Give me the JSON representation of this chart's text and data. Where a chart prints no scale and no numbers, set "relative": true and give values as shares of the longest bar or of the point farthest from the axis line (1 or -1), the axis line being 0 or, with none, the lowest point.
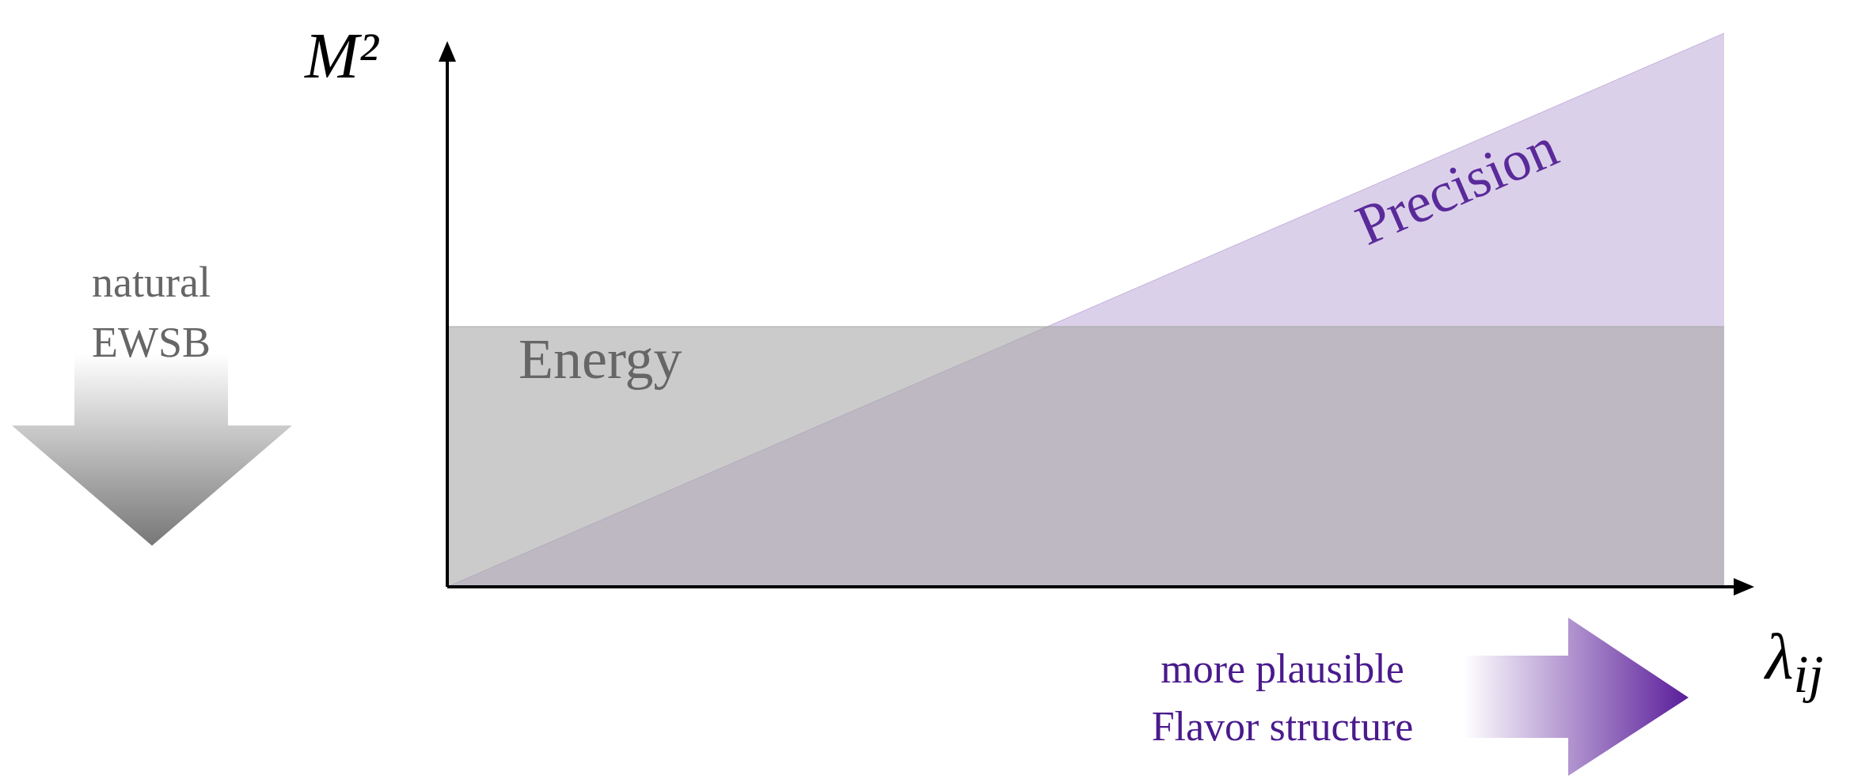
{
  "chart_data": {
    "type": "area",
    "relative": true,
    "xlabel": "λ$_{ij}$",
    "ylabel": "M²",
    "categories": [
      null,
      null
    ],
    "series": [
      {
        "name": "Energy",
        "color": "#a9a9a9",
        "values": [
          0.47,
          0.47
        ]
      },
      {
        "name": "Precision",
        "color": "#c3b0da",
        "values": [
          0,
          1
        ]
      }
    ],
    "annotations": [
      "natural EWSB",
      "more plausible Flavor structure"
    ],
    "legend": false
  }
}
